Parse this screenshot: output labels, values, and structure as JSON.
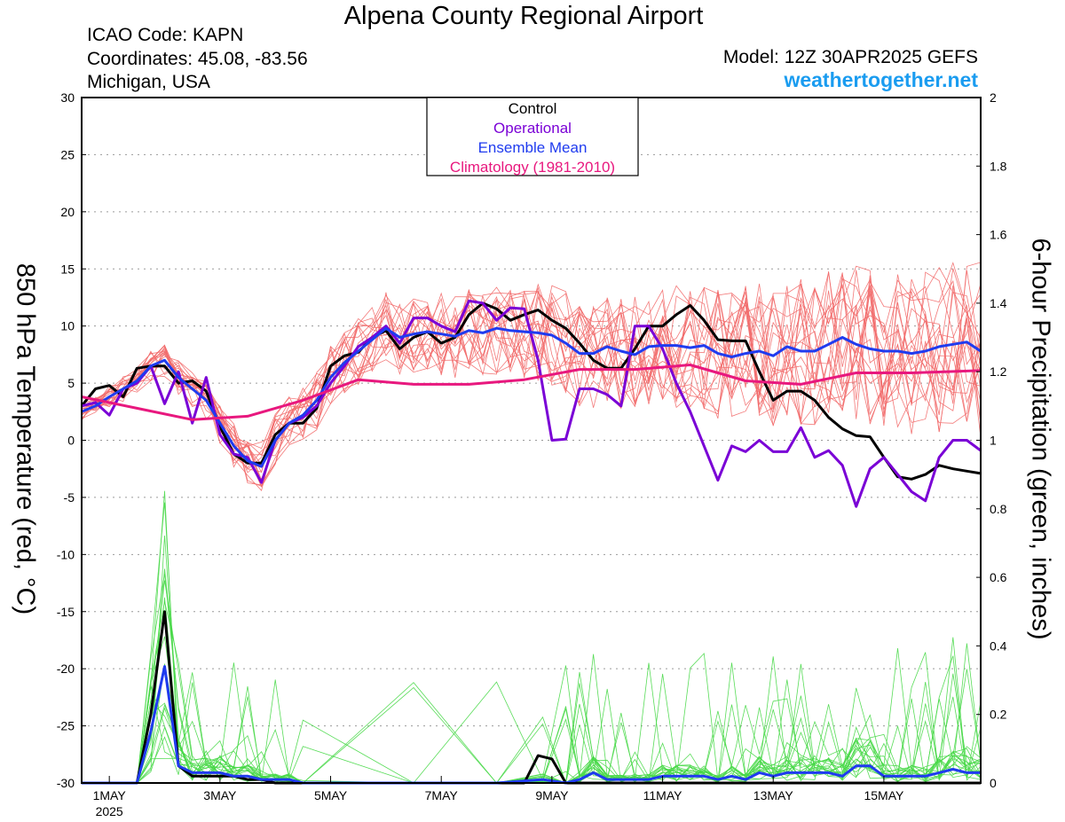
{
  "header": {
    "title": "Alpena County Regional Airport",
    "icao": "ICAO Code: KAPN",
    "coordinates": "Coordinates: 45.08, -83.56",
    "region": "Michigan, USA",
    "model": "Model: 12Z 30APR2025 GEFS",
    "site": "weathertogether.net"
  },
  "chart_data": {
    "type": "line",
    "ylabel_left": "850 hPa Temperature (red, °C)",
    "ylabel_right": "6-hour Precipitation (green, inches)",
    "x_range_hours": [
      0,
      390
    ],
    "ylim_left": [
      -30,
      30
    ],
    "yticks_left": [
      -30,
      -25,
      -20,
      -15,
      -10,
      -5,
      0,
      5,
      10,
      15,
      20,
      25,
      30
    ],
    "ylim_right": [
      0,
      2
    ],
    "yticks_right": [
      0,
      0.2,
      0.4,
      0.6,
      0.8,
      1,
      1.2,
      1.4,
      1.6,
      1.8,
      2
    ],
    "xticks": [
      {
        "hour": 12,
        "label": "1MAY",
        "sub": "2025"
      },
      {
        "hour": 60,
        "label": "3MAY"
      },
      {
        "hour": 108,
        "label": "5MAY"
      },
      {
        "hour": 156,
        "label": "7MAY"
      },
      {
        "hour": 204,
        "label": "9MAY"
      },
      {
        "hour": 252,
        "label": "11MAY"
      },
      {
        "hour": 300,
        "label": "13MAY"
      },
      {
        "hour": 348,
        "label": "15MAY"
      }
    ],
    "grid": true,
    "legend": {
      "placement": "top-center",
      "entries": [
        {
          "label": "Control",
          "color": "#000000"
        },
        {
          "label": "Operational",
          "color": "#7a00d6"
        },
        {
          "label": "Ensemble Mean",
          "color": "#1f3bef"
        },
        {
          "label": "Climatology (1981-2010)",
          "color": "#e8187e"
        }
      ]
    },
    "colors": {
      "members_temp": "#f26a6a",
      "members_precip": "#46d846",
      "control": "#000000",
      "operational": "#7a00d6",
      "mean": "#1f3bef",
      "climatology": "#e8187e"
    },
    "series_temp": [
      {
        "name": "Control",
        "x": [
          0,
          6,
          12,
          18,
          24,
          30,
          36,
          42,
          48,
          54,
          60,
          66,
          72,
          78,
          84,
          90,
          96,
          102,
          108,
          114,
          120,
          126,
          132,
          138,
          144,
          150,
          156,
          162,
          168,
          174,
          180,
          186,
          192,
          198,
          204,
          210,
          216,
          222,
          228,
          234,
          240,
          246,
          252,
          258,
          264,
          270,
          276,
          282,
          288,
          294,
          300,
          306,
          312,
          318,
          324,
          330,
          336,
          342,
          348,
          354,
          360,
          366,
          372,
          378,
          384,
          390
        ],
        "y": [
          3,
          4.5,
          4.8,
          3.8,
          6.3,
          6.5,
          6.5,
          5,
          5.2,
          4.3,
          1.2,
          -1.2,
          -2,
          -2,
          0.5,
          1.5,
          1.5,
          2.8,
          6.5,
          7.4,
          7.7,
          9,
          9.6,
          8,
          9,
          9.5,
          8.5,
          9,
          11,
          12,
          11.5,
          10.5,
          11,
          11.4,
          10.5,
          9.8,
          8.5,
          7,
          6.3,
          6.3,
          8,
          10,
          10,
          11,
          11.8,
          10.5,
          8.8,
          8.7,
          8.7,
          6,
          3.5,
          4.3,
          4.3,
          3.5,
          2,
          1,
          0.4,
          0.3,
          -1.5,
          -3.2,
          -3.4,
          -3,
          -2.2,
          -2.5,
          -2.7,
          -2.9
        ]
      },
      {
        "name": "Operational",
        "x": [
          0,
          6,
          12,
          18,
          24,
          30,
          36,
          42,
          48,
          54,
          60,
          66,
          72,
          78,
          84,
          90,
          96,
          102,
          108,
          114,
          120,
          126,
          132,
          138,
          144,
          150,
          156,
          162,
          168,
          174,
          180,
          186,
          192,
          198,
          204,
          210,
          216,
          222,
          228,
          234,
          240,
          246,
          252,
          258,
          264,
          270,
          276,
          282,
          288,
          294,
          300,
          306,
          312,
          318,
          324,
          330,
          336,
          342,
          348,
          354,
          360,
          366,
          372,
          378,
          384,
          390
        ],
        "y": [
          3,
          3.3,
          2.2,
          4.5,
          5,
          6.5,
          3.2,
          6,
          1.5,
          5.5,
          0.5,
          -1.2,
          -1.5,
          -3.7,
          0,
          1.5,
          2,
          3,
          5,
          6.5,
          8.2,
          9,
          10,
          8.5,
          10.7,
          10.7,
          10,
          9.5,
          12.2,
          12,
          10.5,
          11.6,
          11.5,
          7,
          0,
          0.1,
          4.5,
          4.5,
          4,
          3,
          10,
          10,
          8,
          5,
          2.5,
          -0.5,
          -3.5,
          -0.5,
          -1,
          0,
          -1,
          -1,
          1.1,
          -1.5,
          -0.9,
          -2.2,
          -5.8,
          -2.5,
          -1.5,
          -3,
          -4.5,
          -5.3,
          -1.5,
          0,
          0,
          -0.9
        ]
      },
      {
        "name": "Ensemble Mean",
        "x": [
          0,
          6,
          12,
          18,
          24,
          30,
          36,
          42,
          48,
          54,
          60,
          66,
          72,
          78,
          84,
          90,
          96,
          102,
          108,
          114,
          120,
          126,
          132,
          138,
          144,
          150,
          156,
          162,
          168,
          174,
          180,
          186,
          192,
          198,
          204,
          210,
          216,
          222,
          228,
          234,
          240,
          246,
          252,
          258,
          264,
          270,
          276,
          282,
          288,
          294,
          300,
          306,
          312,
          318,
          324,
          330,
          336,
          342,
          348,
          354,
          360,
          366,
          372,
          378,
          384,
          390
        ],
        "y": [
          2.5,
          3,
          3.8,
          4.5,
          5.2,
          6.5,
          7,
          5.5,
          4.5,
          3.5,
          1.5,
          -0.5,
          -1.8,
          -2.3,
          0,
          1.5,
          2.2,
          3.5,
          5.5,
          6.8,
          7.8,
          8.8,
          9.8,
          9,
          9.3,
          9.5,
          9.3,
          9.1,
          9.6,
          9.4,
          9.8,
          9.6,
          9.5,
          9.4,
          9.2,
          8.5,
          7.6,
          7.6,
          8.2,
          7.8,
          7.5,
          8.2,
          8.3,
          8.3,
          8.1,
          8.3,
          7.6,
          7.3,
          7.6,
          7.8,
          7.4,
          8.2,
          7.8,
          7.8,
          8.4,
          9,
          8.4,
          8,
          7.8,
          7.8,
          7.6,
          7.8,
          8.2,
          8.4,
          8.6,
          7.8
        ]
      },
      {
        "name": "Climatology (1981-2010)",
        "x": [
          0,
          24,
          48,
          72,
          96,
          120,
          144,
          168,
          192,
          216,
          240,
          264,
          288,
          312,
          336,
          360,
          390
        ],
        "y": [
          3.8,
          2.8,
          1.8,
          2.1,
          3.5,
          5.3,
          4.9,
          4.9,
          5.3,
          6.2,
          6.2,
          6.6,
          5.2,
          4.9,
          5.9,
          5.9,
          6.1
        ]
      }
    ],
    "series_precip": [
      {
        "name": "Control",
        "x": [
          0,
          24,
          30,
          36,
          42,
          48,
          54,
          60,
          66,
          72,
          78,
          84,
          90,
          96,
          192,
          198,
          204,
          210,
          216,
          300,
          390
        ],
        "y": [
          0,
          0,
          0.2,
          0.5,
          0.05,
          0.02,
          0.02,
          0.02,
          0.02,
          0.01,
          0.01,
          0,
          0,
          0,
          0,
          0.08,
          0.07,
          0,
          0,
          0,
          0
        ]
      },
      {
        "name": "Ensemble Mean",
        "x": [
          0,
          24,
          30,
          36,
          42,
          48,
          54,
          60,
          66,
          72,
          78,
          84,
          90,
          96,
          144,
          180,
          200,
          210,
          216,
          222,
          228,
          234,
          240,
          246,
          252,
          258,
          264,
          270,
          276,
          282,
          288,
          294,
          300,
          306,
          312,
          318,
          324,
          330,
          336,
          342,
          348,
          354,
          360,
          366,
          372,
          378,
          384,
          390
        ],
        "y": [
          0,
          0,
          0.15,
          0.34,
          0.05,
          0.03,
          0.03,
          0.03,
          0.02,
          0.02,
          0.01,
          0.01,
          0.01,
          0,
          0,
          0,
          0.01,
          0,
          0.01,
          0.03,
          0.01,
          0.01,
          0.01,
          0.01,
          0.02,
          0.02,
          0.02,
          0.02,
          0.01,
          0.02,
          0.01,
          0.03,
          0.02,
          0.03,
          0.03,
          0.03,
          0.03,
          0.02,
          0.05,
          0.05,
          0.02,
          0.02,
          0.02,
          0.02,
          0.03,
          0.04,
          0.03,
          0.03
        ]
      }
    ]
  }
}
